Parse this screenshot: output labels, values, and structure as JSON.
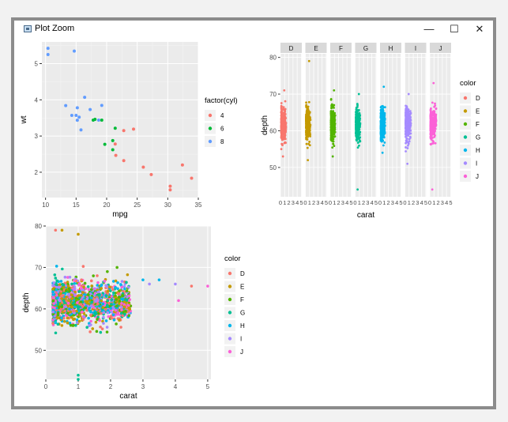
{
  "window": {
    "title": "Plot Zoom",
    "minimize_label": "—",
    "maximize_label": "☐",
    "close_label": "✕"
  },
  "chart_data": [
    {
      "type": "scatter",
      "xlabel": "mpg",
      "ylabel": "wt",
      "xlim": [
        9.4,
        35
      ],
      "ylim": [
        1.3,
        5.6
      ],
      "xticks": [
        10,
        15,
        20,
        25,
        30,
        35
      ],
      "yticks": [
        2,
        3,
        4,
        5
      ],
      "legend": {
        "title": "factor(cyl)",
        "placement": "right"
      },
      "series": [
        {
          "name": "4",
          "color": "#F8766D",
          "points": [
            [
              22.8,
              2.32
            ],
            [
              24.4,
              3.19
            ],
            [
              22.8,
              3.15
            ],
            [
              32.4,
              2.2
            ],
            [
              30.4,
              1.615
            ],
            [
              33.9,
              1.835
            ],
            [
              21.5,
              2.465
            ],
            [
              27.3,
              1.935
            ],
            [
              26.0,
              2.14
            ],
            [
              30.4,
              1.513
            ],
            [
              21.4,
              2.78
            ]
          ]
        },
        {
          "name": "6",
          "color": "#00BA38",
          "points": [
            [
              21.0,
              2.62
            ],
            [
              21.0,
              2.875
            ],
            [
              21.4,
              3.215
            ],
            [
              18.1,
              3.46
            ],
            [
              19.2,
              3.44
            ],
            [
              17.8,
              3.44
            ],
            [
              19.7,
              2.77
            ]
          ]
        },
        {
          "name": "8",
          "color": "#619CFF",
          "points": [
            [
              18.7,
              3.44
            ],
            [
              14.3,
              3.57
            ],
            [
              16.4,
              4.07
            ],
            [
              17.3,
              3.73
            ],
            [
              15.2,
              3.78
            ],
            [
              10.4,
              5.25
            ],
            [
              10.4,
              5.424
            ],
            [
              14.7,
              5.345
            ],
            [
              15.5,
              3.52
            ],
            [
              15.2,
              3.435
            ],
            [
              13.3,
              3.84
            ],
            [
              19.2,
              3.845
            ],
            [
              15.8,
              3.17
            ],
            [
              15.0,
              3.57
            ]
          ]
        }
      ]
    },
    {
      "type": "scatter",
      "xlabel": "carat",
      "ylabel": "depth",
      "ylim": [
        42,
        81
      ],
      "yticks": [
        50,
        60,
        70,
        80
      ],
      "facets": [
        "D",
        "E",
        "F",
        "G",
        "H",
        "I",
        "J"
      ],
      "facet_xticks": [
        "0",
        "1",
        "2",
        "3",
        "4",
        "5"
      ],
      "xlim": [
        0,
        5.1
      ],
      "legend": {
        "title": "color",
        "placement": "right"
      },
      "series": [
        {
          "name": "D",
          "color": "#F8766D",
          "range": [
            0.2,
            3.4
          ],
          "depth_range": [
            53,
            71
          ]
        },
        {
          "name": "E",
          "color": "#C49A00",
          "range": [
            0.2,
            3.1
          ],
          "depth_range": [
            52,
            79
          ]
        },
        {
          "name": "F",
          "color": "#53B400",
          "range": [
            0.2,
            3.0
          ],
          "depth_range": [
            53,
            71
          ]
        },
        {
          "name": "G",
          "color": "#00C094",
          "range": [
            0.2,
            3.1
          ],
          "depth_range": [
            44,
            70
          ]
        },
        {
          "name": "H",
          "color": "#00B6EB",
          "range": [
            0.2,
            3.1
          ],
          "depth_range": [
            54,
            72
          ]
        },
        {
          "name": "I",
          "color": "#A58AFF",
          "range": [
            0.2,
            3.7
          ],
          "depth_range": [
            51,
            70
          ]
        },
        {
          "name": "J",
          "color": "#FB61D7",
          "range": [
            0.2,
            4.0
          ],
          "depth_range": [
            44,
            73
          ]
        }
      ]
    },
    {
      "type": "scatter",
      "xlabel": "carat",
      "ylabel": "depth",
      "xlim": [
        0,
        5.1
      ],
      "ylim": [
        43,
        80
      ],
      "xticks": [
        0,
        1,
        2,
        3,
        4,
        5
      ],
      "yticks": [
        50,
        60,
        70,
        80
      ],
      "legend": {
        "title": "color",
        "placement": "right"
      },
      "series": [
        {
          "name": "D",
          "color": "#F8766D",
          "outliers": [
            [
              0.3,
              79
            ],
            [
              4.5,
              65.5
            ]
          ]
        },
        {
          "name": "E",
          "color": "#C49A00",
          "outliers": [
            [
              0.5,
              79
            ],
            [
              1.0,
              78
            ]
          ]
        },
        {
          "name": "F",
          "color": "#53B400",
          "outliers": [
            [
              2.2,
              70
            ],
            [
              1.9,
              69
            ]
          ]
        },
        {
          "name": "G",
          "color": "#00C094",
          "outliers": [
            [
              1.0,
              44
            ],
            [
              1.0,
              43
            ]
          ]
        },
        {
          "name": "H",
          "color": "#00B6EB",
          "outliers": [
            [
              3.0,
              67
            ],
            [
              3.5,
              67
            ]
          ]
        },
        {
          "name": "I",
          "color": "#A58AFF",
          "outliers": [
            [
              3.2,
              66
            ],
            [
              4.0,
              66
            ]
          ]
        },
        {
          "name": "J",
          "color": "#FB61D7",
          "outliers": [
            [
              5.0,
              65.5
            ],
            [
              4.1,
              62
            ]
          ]
        }
      ]
    }
  ]
}
